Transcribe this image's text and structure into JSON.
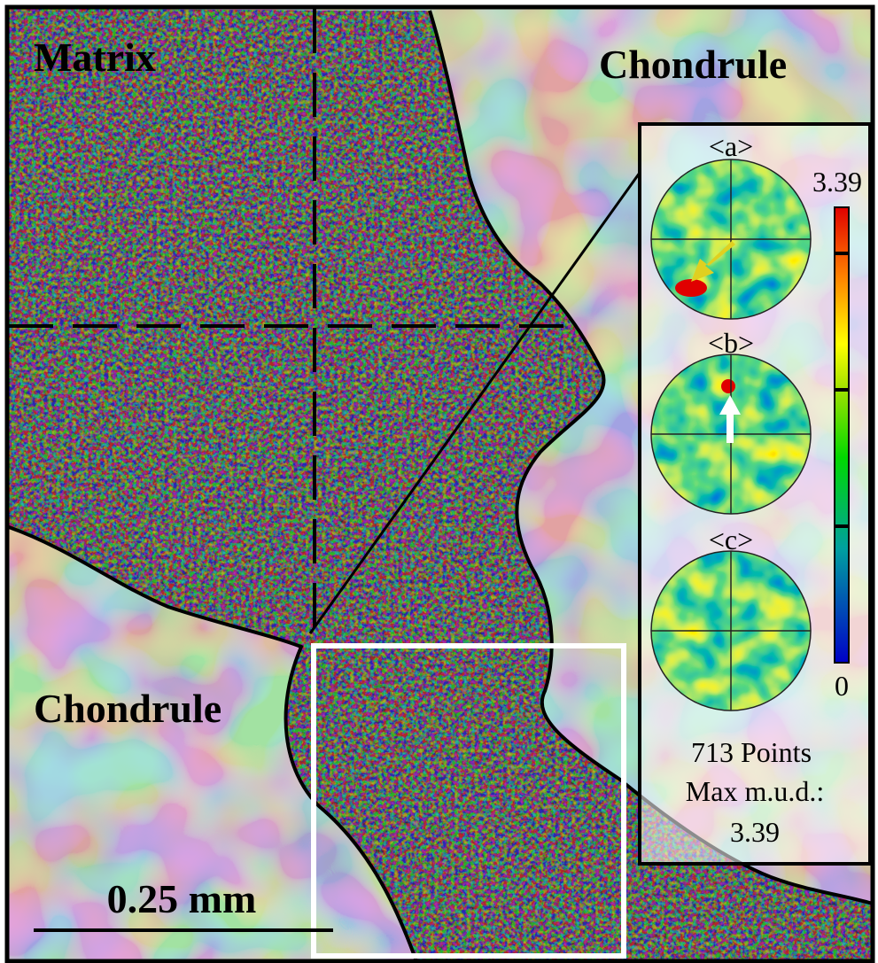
{
  "labels": {
    "matrix": "Matrix",
    "chondrule_top": "Chondrule",
    "chondrule_bottom": "Chondrule"
  },
  "scale_bar": "0.25 mm",
  "inset": {
    "pole_figures": [
      "<a>",
      "<b>",
      "<c>"
    ],
    "colorbar": {
      "max": "3.39",
      "min": "0"
    },
    "points": "713 Points",
    "max_mud_label": "Max m.u.d.:",
    "max_mud_value": "3.39"
  }
}
